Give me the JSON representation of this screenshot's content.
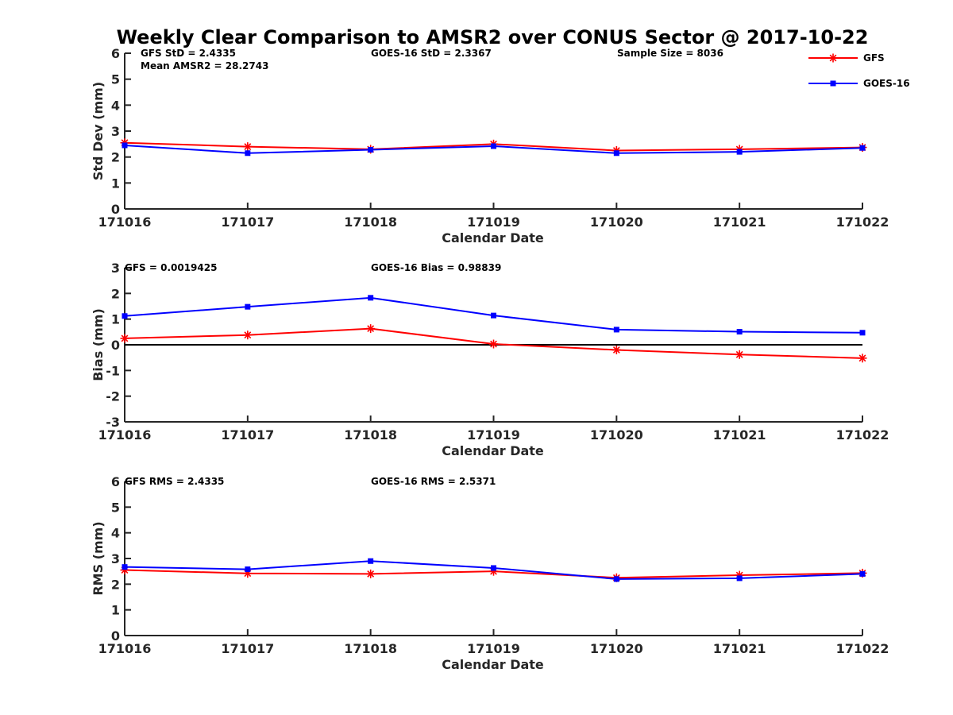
{
  "figure": {
    "title": "Weekly Clear Comparison to AMSR2 over CONUS Sector @ 2017-10-22",
    "legend": {
      "placement": "top-right",
      "entries": [
        {
          "name": "GFS",
          "color": "#ff0000",
          "marker": "asterisk"
        },
        {
          "name": "GOES-16",
          "color": "#0000ff",
          "marker": "square"
        }
      ]
    }
  },
  "chart_data": [
    {
      "type": "line",
      "xlabel": "Calendar Date",
      "ylabel": "Std Dev (mm)",
      "ylim": [
        0,
        6
      ],
      "yticks": [
        "0",
        "1",
        "2",
        "3",
        "4",
        "5",
        "6"
      ],
      "categories": [
        "171016",
        "171017",
        "171018",
        "171019",
        "171020",
        "171021",
        "171022"
      ],
      "zero_line": false,
      "annotations": [
        "GFS StD = 2.4335",
        "Mean AMSR2 = 28.2743",
        "GOES-16 StD = 2.3367",
        "Sample Size = 8036"
      ],
      "series": [
        {
          "name": "GFS",
          "color": "#ff0000",
          "marker": "asterisk",
          "values": [
            2.55,
            2.4,
            2.3,
            2.5,
            2.25,
            2.3,
            2.37
          ]
        },
        {
          "name": "GOES-16",
          "color": "#0000ff",
          "marker": "square",
          "values": [
            2.45,
            2.15,
            2.28,
            2.42,
            2.15,
            2.2,
            2.35
          ]
        }
      ]
    },
    {
      "type": "line",
      "xlabel": "Calendar Date",
      "ylabel": "Bias (mm)",
      "ylim": [
        -3,
        3
      ],
      "yticks": [
        "-3",
        "-2",
        "-1",
        "0",
        "1",
        "2",
        "3"
      ],
      "categories": [
        "171016",
        "171017",
        "171018",
        "171019",
        "171020",
        "171021",
        "171022"
      ],
      "zero_line": true,
      "annotations": [
        "GFS = 0.0019425",
        "GOES-16 Bias  = 0.98839"
      ],
      "series": [
        {
          "name": "GFS",
          "color": "#ff0000",
          "marker": "asterisk",
          "values": [
            0.25,
            0.38,
            0.63,
            0.03,
            -0.2,
            -0.38,
            -0.52
          ]
        },
        {
          "name": "GOES-16",
          "color": "#0000ff",
          "marker": "square",
          "values": [
            1.12,
            1.48,
            1.83,
            1.14,
            0.59,
            0.51,
            0.47
          ]
        }
      ]
    },
    {
      "type": "line",
      "xlabel": "Calendar Date",
      "ylabel": "RMS (mm)",
      "ylim": [
        0,
        6
      ],
      "yticks": [
        "0",
        "1",
        "2",
        "3",
        "4",
        "5",
        "6"
      ],
      "categories": [
        "171016",
        "171017",
        "171018",
        "171019",
        "171020",
        "171021",
        "171022"
      ],
      "zero_line": false,
      "annotations": [
        "GFS RMS = 2.4335",
        "GOES-16 RMS = 2.5371"
      ],
      "series": [
        {
          "name": "GFS",
          "color": "#ff0000",
          "marker": "asterisk",
          "values": [
            2.55,
            2.42,
            2.4,
            2.5,
            2.25,
            2.35,
            2.43
          ]
        },
        {
          "name": "GOES-16",
          "color": "#0000ff",
          "marker": "square",
          "values": [
            2.67,
            2.58,
            2.9,
            2.63,
            2.2,
            2.23,
            2.4
          ]
        }
      ]
    }
  ]
}
